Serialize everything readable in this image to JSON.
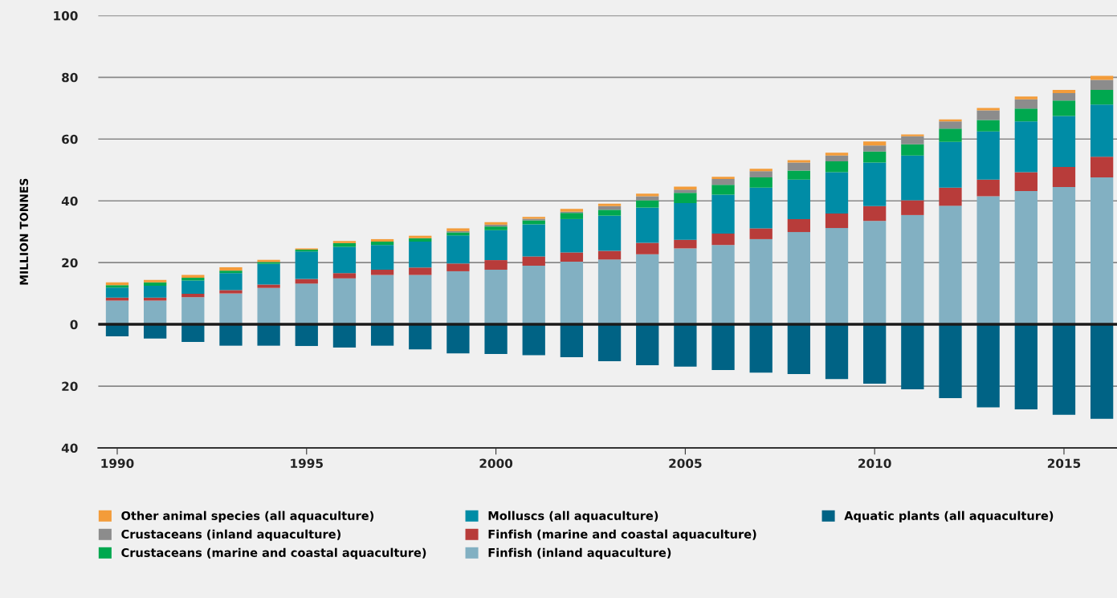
{
  "chart_data": {
    "type": "bar",
    "stacked": true,
    "ylabel": "MILLION TONNES",
    "x": [
      1990,
      1991,
      1992,
      1993,
      1994,
      1995,
      1996,
      1997,
      1998,
      1999,
      2000,
      2001,
      2002,
      2003,
      2004,
      2005,
      2006,
      2007,
      2008,
      2009,
      2010,
      2011,
      2012,
      2013,
      2014,
      2015,
      2016
    ],
    "xlim": [
      1989.5,
      2016.4
    ],
    "xticks": [
      1990,
      1995,
      2000,
      2005,
      2010,
      2015
    ],
    "ylim": [
      -40,
      100
    ],
    "yticks": [
      {
        "value": -40,
        "label": "40"
      },
      {
        "value": -20,
        "label": "20"
      },
      0,
      20,
      40,
      60,
      80,
      100
    ],
    "grid": "y",
    "legend": "bottom",
    "ref_lines": [
      {
        "axis": "y",
        "value": 0,
        "color": "#1a1a1a"
      }
    ],
    "series": [
      {
        "name": "Finfish (inland aquaculture)",
        "color": "#82b0c2",
        "values": [
          7.7,
          7.7,
          8.8,
          10.0,
          11.8,
          13.2,
          14.9,
          16.0,
          16.0,
          17.2,
          17.7,
          19.0,
          20.3,
          21.0,
          22.7,
          24.6,
          25.7,
          27.6,
          29.9,
          31.2,
          33.5,
          35.4,
          38.4,
          41.5,
          43.2,
          44.5,
          47.6
        ]
      },
      {
        "name": "Finfish (marine and coastal aquaculture)",
        "color": "#b83c3a",
        "values": [
          1.0,
          1.0,
          1.1,
          1.1,
          1.1,
          1.5,
          1.7,
          1.7,
          2.4,
          2.5,
          3.1,
          3.0,
          3.0,
          2.8,
          3.7,
          2.8,
          3.7,
          3.5,
          4.2,
          4.7,
          4.8,
          4.8,
          5.9,
          5.4,
          6.1,
          6.5,
          6.7
        ]
      },
      {
        "name": "Molluscs (all aquaculture)",
        "color": "#008ca6",
        "values": [
          3.2,
          3.8,
          4.3,
          5.5,
          6.7,
          8.9,
          8.5,
          8.0,
          8.4,
          9.1,
          9.7,
          10.4,
          10.8,
          11.4,
          11.4,
          11.9,
          12.6,
          13.2,
          12.8,
          13.4,
          14.1,
          14.5,
          14.8,
          15.6,
          16.4,
          16.5,
          16.9
        ]
      },
      {
        "name": "Crustaceans (marine and coastal aquaculture)",
        "color": "#00a84f",
        "values": [
          0.8,
          1.1,
          0.9,
          0.8,
          0.6,
          0.6,
          1.2,
          1.1,
          1.1,
          1.0,
          1.2,
          1.3,
          2.0,
          1.9,
          2.4,
          3.3,
          3.2,
          3.3,
          2.9,
          3.5,
          3.6,
          3.6,
          4.3,
          3.7,
          4.2,
          5.0,
          4.7
        ]
      },
      {
        "name": "Crustaceans (inland aquaculture)",
        "color": "#8c8c8c",
        "values": [
          null,
          null,
          null,
          null,
          null,
          null,
          null,
          null,
          null,
          0.4,
          0.6,
          0.5,
          0.4,
          1.2,
          1.3,
          1.0,
          1.9,
          2.0,
          2.6,
          1.9,
          1.9,
          2.6,
          2.3,
          3.1,
          3.0,
          2.4,
          3.3
        ]
      },
      {
        "name": "Other animal species (all aquaculture)",
        "color": "#f39c3a",
        "values": [
          0.9,
          0.8,
          0.9,
          1.1,
          0.7,
          0.4,
          0.7,
          0.8,
          0.8,
          0.9,
          0.8,
          0.6,
          0.9,
          0.8,
          0.8,
          1.0,
          0.7,
          0.8,
          0.8,
          0.9,
          1.3,
          0.6,
          0.7,
          0.8,
          0.9,
          1.0,
          1.3
        ]
      },
      {
        "name": "Aquatic plants (all aquaculture)",
        "color": "#006385",
        "values": [
          -3.9,
          -4.6,
          -5.7,
          -6.9,
          -6.9,
          -7.0,
          -7.5,
          -6.9,
          -8.1,
          -9.4,
          -9.6,
          -10.0,
          -10.6,
          -11.9,
          -13.2,
          -13.7,
          -14.8,
          -15.6,
          -16.1,
          -17.7,
          -19.2,
          -21.0,
          -23.9,
          -26.9,
          -27.5,
          -29.3,
          -30.6
        ]
      }
    ]
  }
}
